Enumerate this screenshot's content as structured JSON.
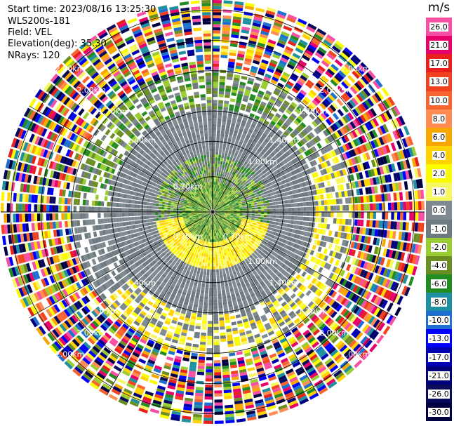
{
  "header": {
    "start_time": "Start time: 2023/08/16 13:25:30",
    "instrument": "WLS200s-181",
    "field": "Field: VEL",
    "elevation": "Elevation(deg): 35.30",
    "nrays": "NRays: 120"
  },
  "colorbar": {
    "unit": "m/s",
    "bins": [
      {
        "label": "26.0",
        "color": "#f74fa4"
      },
      {
        "label": "21.0",
        "color": "#e8006a"
      },
      {
        "label": "17.0",
        "color": "#e8201c"
      },
      {
        "label": "13.0",
        "color": "#f0421e"
      },
      {
        "label": "10.0",
        "color": "#f7642f"
      },
      {
        "label": "8.0",
        "color": "#ff8c52"
      },
      {
        "label": "6.0",
        "color": "#f7a800"
      },
      {
        "label": "4.0",
        "color": "#ffd200"
      },
      {
        "label": "2.0",
        "color": "#fbfb00"
      },
      {
        "label": "1.0",
        "color": "#f7f760"
      },
      {
        "label": "0.0",
        "color": "#7f8a90"
      },
      {
        "label": "-1.0",
        "color": "#6e7a80"
      },
      {
        "label": "-2.0",
        "color": "#9acd32"
      },
      {
        "label": "-4.0",
        "color": "#6b8e23"
      },
      {
        "label": "-6.0",
        "color": "#228b22"
      },
      {
        "label": "-8.0",
        "color": "#1e90a0"
      },
      {
        "label": "-10.0",
        "color": "#1e70d0"
      },
      {
        "label": "-13.0",
        "color": "#0000ff"
      },
      {
        "label": "-17.0",
        "color": "#0000b0"
      },
      {
        "label": "-21.0",
        "color": "#00007a"
      },
      {
        "label": "-26.0",
        "color": "#0a0a5a"
      },
      {
        "label": "-30.0",
        "color": "#000040"
      }
    ]
  },
  "chart_data": {
    "type": "heatmap",
    "field": "VEL",
    "elevation_deg": 35.3,
    "n_rays": 120,
    "range_ring_labels": [
      {
        "label": "0.70km",
        "angles_deg": [
          -45,
          135,
          225
        ]
      },
      {
        "label": "1.00km",
        "angles_deg": [
          45,
          135
        ]
      },
      {
        "label": "1.40km",
        "angles_deg": [
          -45,
          45,
          135,
          225
        ]
      },
      {
        "label": "1.70km",
        "angles_deg": [
          -45,
          45,
          135,
          225
        ]
      },
      {
        "label": "2.00km",
        "angles_deg": [
          -45,
          45,
          135,
          225
        ]
      },
      {
        "label": "2.00km",
        "angles_deg": [
          -45,
          45,
          135,
          225
        ]
      }
    ],
    "rings_km": [
      0.35,
      0.7,
      1.0,
      1.4,
      1.7,
      2.0
    ],
    "velocity_regions": [
      {
        "range_km": [
          0,
          0.35
        ],
        "dominant": "-2.0 to 0.0"
      },
      {
        "range_km": [
          0.35,
          0.7
        ],
        "dominant": "0.0 to 2.0"
      },
      {
        "range_km": [
          0.7,
          1.4
        ],
        "dominant": "-2.0 to 2.0"
      },
      {
        "range_km": [
          1.4,
          2.1
        ],
        "dominant": "mixed -30.0 to 26.0"
      }
    ]
  }
}
